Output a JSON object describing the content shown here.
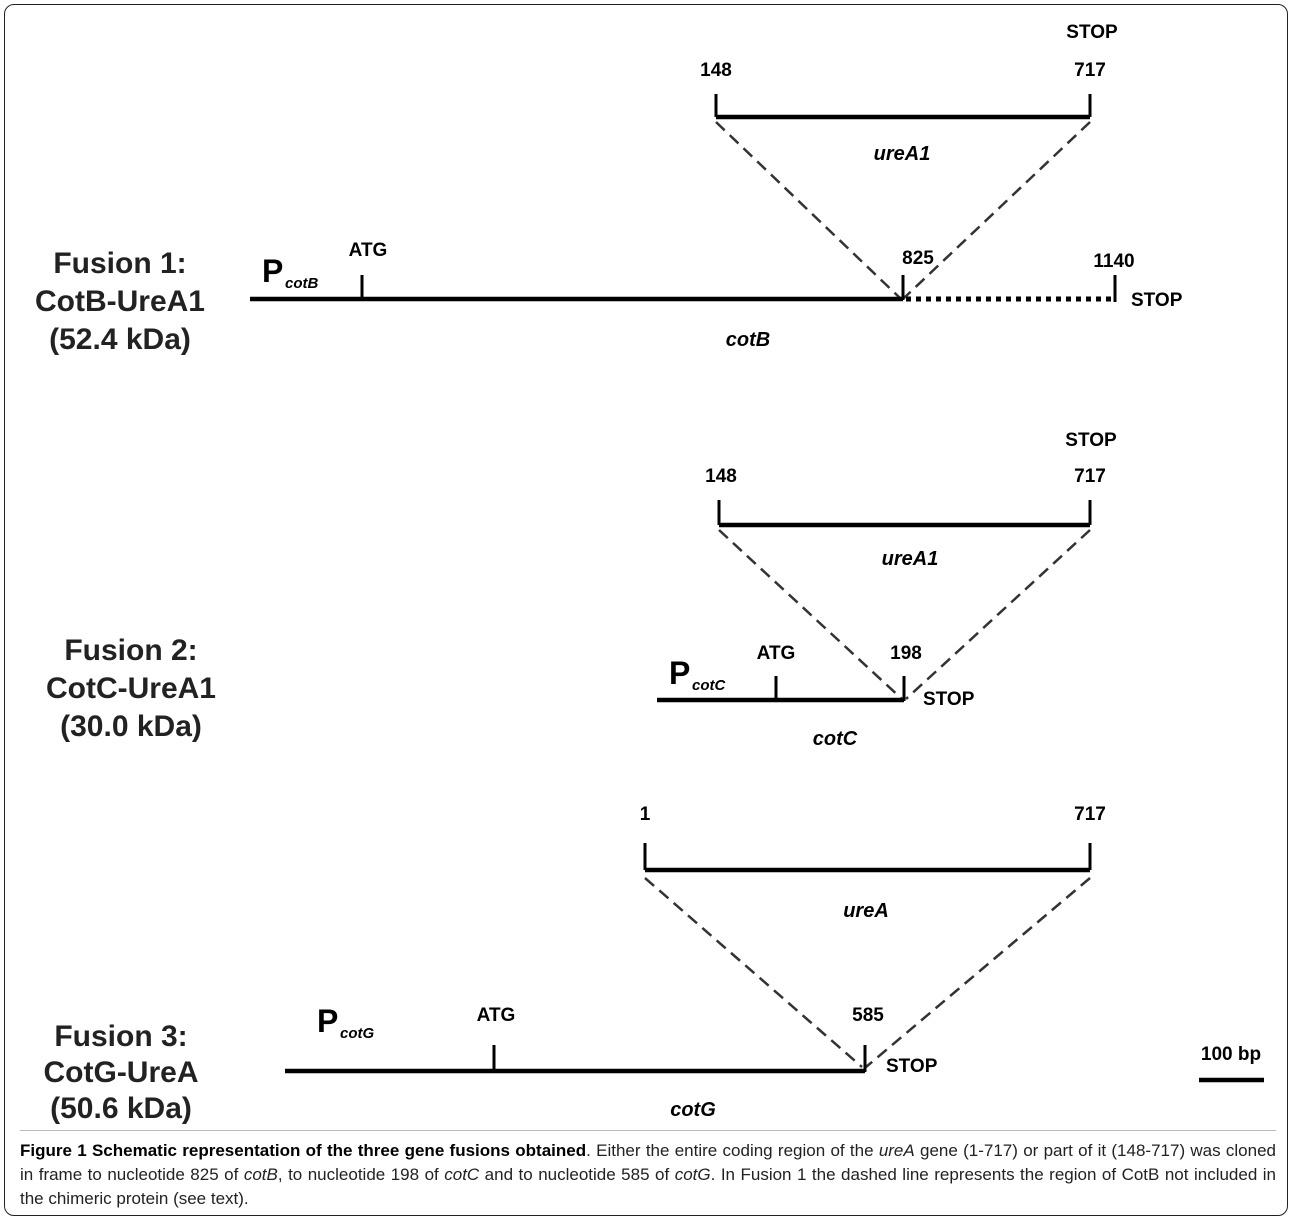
{
  "fusion1": {
    "title_line1": "Fusion 1:",
    "title_line2": "CotB-UreA1",
    "title_line3": "(52.4 kDa)",
    "promoter_P": "P",
    "promoter_sub": "cotB",
    "atg": "ATG",
    "junction": "825",
    "end": "1140",
    "stop_bottom": "STOP",
    "gene": "cotB",
    "insert_start": "148",
    "insert_end": "717",
    "insert_stop": "STOP",
    "insert_gene": "ureA1"
  },
  "fusion2": {
    "title_line1": "Fusion 2:",
    "title_line2": "CotC-UreA1",
    "title_line3": "(30.0 kDa)",
    "promoter_P": "P",
    "promoter_sub": "cotC",
    "atg": "ATG",
    "junction": "198",
    "stop_bottom": "STOP",
    "gene": "cotC",
    "insert_start": "148",
    "insert_end": "717",
    "insert_stop": "STOP",
    "insert_gene": "ureA1"
  },
  "fusion3": {
    "title_line1": "Fusion 3:",
    "title_line2": "CotG-UreA",
    "title_line3": "(50.6 kDa)",
    "promoter_P": "P",
    "promoter_sub": "cotG",
    "atg": "ATG",
    "junction": "585",
    "stop_bottom": "STOP",
    "gene": "cotG",
    "insert_start": "1",
    "insert_end": "717",
    "insert_gene": "ureA"
  },
  "scale_bar": "100 bp",
  "caption": {
    "title": "Figure 1 Schematic representation of the three gene fusions obtained",
    "t1": ". Either the entire coding region of the ",
    "i1": "ureA",
    "t2": " gene (1-717) or part of it (148-717) was cloned in frame to nucleotide 825 of ",
    "i2": "cotB",
    "t3": ", to nucleotide 198 of ",
    "i3": "cotC",
    "t4": " and to nucleotide 585 of ",
    "i4": "cotG",
    "t5": ". In Fusion 1 the dashed line represents the region of CotB not included in the chimeric protein (see text)."
  }
}
